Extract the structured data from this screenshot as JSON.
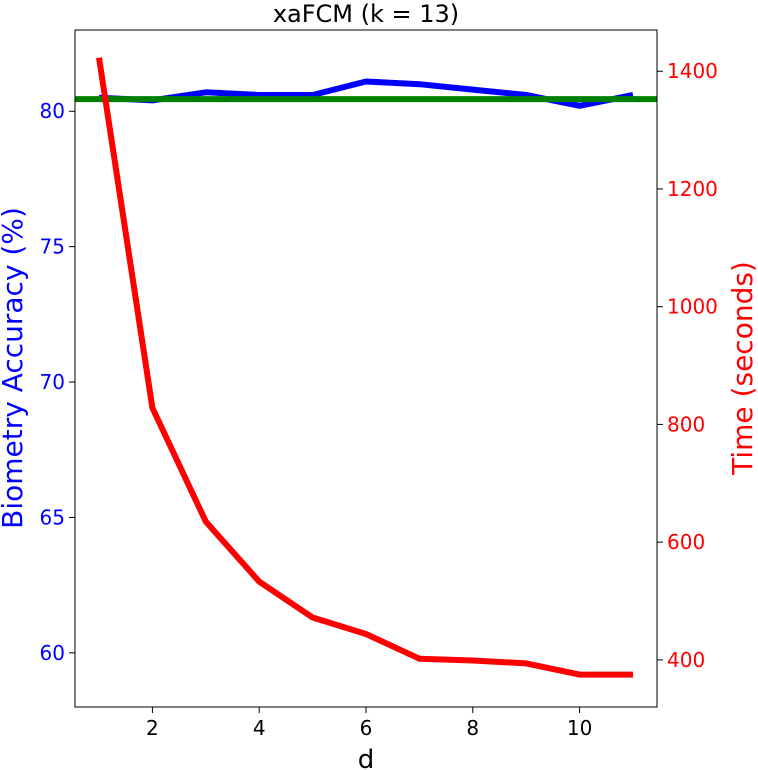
{
  "chart_data": {
    "type": "line",
    "title": "xaFCM (k = 13)",
    "xlabel": "d",
    "ylabel_left": "Biometry Accuracy (%)",
    "ylabel_right": "Time (seconds)",
    "xlim": [
      0.55,
      11.45
    ],
    "ylim_left": [
      58.0,
      83.0
    ],
    "ylim_right": [
      320,
      1470
    ],
    "x_ticks": [
      2,
      4,
      6,
      8,
      10
    ],
    "y_ticks_left": [
      60,
      65,
      70,
      75,
      80
    ],
    "y_ticks_right": [
      400,
      600,
      800,
      1000,
      1200,
      1400
    ],
    "grid": false,
    "colors": {
      "accuracy": "#0000ff",
      "baseline": "#007f00",
      "time": "#ff0000",
      "axis": "#000000"
    },
    "series": [
      {
        "axis": "left",
        "color": "#0000ff",
        "x": [
          1,
          2,
          3,
          4,
          5,
          6,
          7,
          8,
          9,
          10,
          11
        ],
        "values": [
          80.5,
          80.4,
          80.7,
          80.6,
          80.6,
          81.1,
          81.0,
          80.8,
          80.6,
          80.2,
          80.6
        ]
      },
      {
        "axis": "left",
        "color": "#007f00",
        "x": [
          0.55,
          11.45
        ],
        "values": [
          80.45,
          80.45
        ]
      },
      {
        "axis": "right",
        "color": "#ff0000",
        "x": [
          1,
          2,
          3,
          4,
          5,
          6,
          7,
          8,
          9,
          10,
          11
        ],
        "values": [
          1423,
          828,
          635,
          533,
          472,
          444,
          402,
          399,
          394,
          375,
          375
        ]
      }
    ]
  }
}
